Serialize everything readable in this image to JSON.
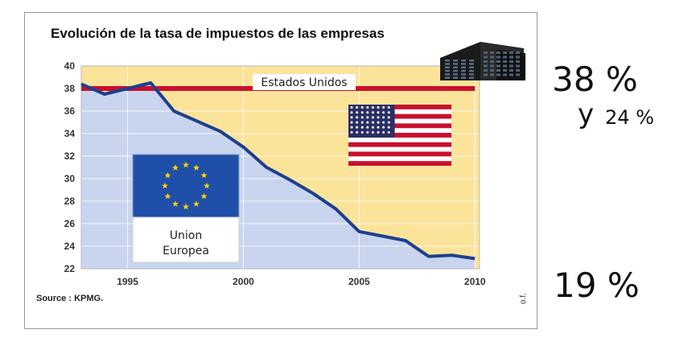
{
  "chart_data": {
    "type": "line",
    "title": "Evolución de la tasa de impuestos de las empresas",
    "source": "Source : KPMG.",
    "side_note": "o.f.",
    "xlabel": "",
    "ylabel": "",
    "xlim": [
      1993,
      2010.2
    ],
    "ylim": [
      22,
      40
    ],
    "x_ticks": [
      "1995",
      "2000",
      "2005",
      "2010"
    ],
    "y_ticks": [
      "22",
      "24",
      "26",
      "28",
      "30",
      "32",
      "34",
      "36",
      "38",
      "40"
    ],
    "grid": true,
    "series": [
      {
        "name": "Union Europea",
        "x": [
          1993,
          1994,
          1995,
          1996,
          1997,
          1998,
          1999,
          2000,
          2001,
          2002,
          2003,
          2004,
          2005,
          2006,
          2007,
          2008,
          2009,
          2010
        ],
        "y": [
          38.4,
          37.5,
          38.0,
          38.5,
          36.0,
          35.1,
          34.2,
          32.8,
          31.0,
          29.9,
          28.7,
          27.3,
          25.3,
          24.9,
          24.5,
          23.1,
          23.2,
          22.9
        ],
        "color": "#1e3f8f",
        "label_lines": [
          "Union",
          "Europea"
        ]
      },
      {
        "name": "Estados Unidos",
        "x": [
          1993,
          2010
        ],
        "y": [
          38,
          38
        ],
        "color": "#c8102e"
      }
    ],
    "colors": {
      "eu_area": "#c9d4ee",
      "us_area": "#fbe39a",
      "eu_flag_blue": "#1f4fa8",
      "eu_flag_star": "#ffd200",
      "us_flag_red": "#c8102e",
      "us_flag_blue": "#2b2f66"
    }
  },
  "side_labels": {
    "us_rate": "38 %",
    "conjunction": "y",
    "us_rate_alt": "24 %",
    "eu_rate": "19 %"
  },
  "icons": [
    "office-building-icon",
    "us-flag-icon",
    "eu-flag-icon"
  ]
}
